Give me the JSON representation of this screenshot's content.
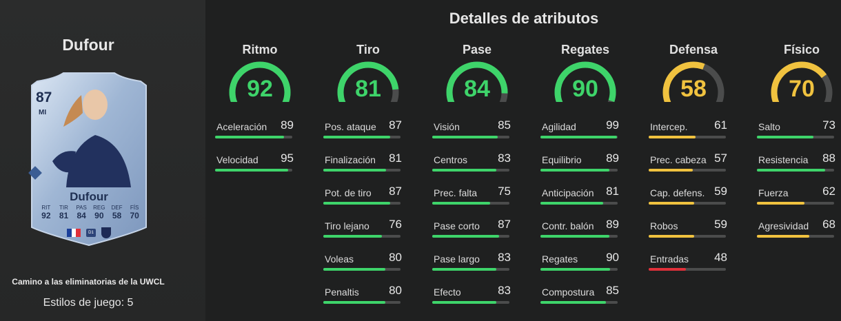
{
  "player": {
    "name": "Dufour",
    "card": {
      "rating": "87",
      "position": "MI",
      "name": "Dufour",
      "stat_labels": [
        "RIT",
        "TIR",
        "PAS",
        "REG",
        "DEF",
        "FÍS"
      ],
      "stat_values": [
        "92",
        "81",
        "84",
        "90",
        "58",
        "70"
      ],
      "league_badge": "D1"
    },
    "promo": "Camino a las eliminatorias de la UWCL",
    "playstyles": "Estilos de juego: 5"
  },
  "title": "Detalles de atributos",
  "colors": {
    "green": "#3ed46a",
    "yellow": "#f0c23f",
    "red": "#e0303a",
    "track": "#4b4c4c",
    "background": "#1f2020"
  },
  "categories": [
    {
      "name": "Ritmo",
      "value": 92,
      "color": "green",
      "stats": [
        {
          "label": "Aceleración",
          "value": 89
        },
        {
          "label": "Velocidad",
          "value": 95
        }
      ]
    },
    {
      "name": "Tiro",
      "value": 81,
      "color": "green",
      "stats": [
        {
          "label": "Pos. ataque",
          "value": 87
        },
        {
          "label": "Finalización",
          "value": 81
        },
        {
          "label": "Pot. de tiro",
          "value": 87
        },
        {
          "label": "Tiro lejano",
          "value": 76
        },
        {
          "label": "Voleas",
          "value": 80
        },
        {
          "label": "Penaltis",
          "value": 80
        }
      ]
    },
    {
      "name": "Pase",
      "value": 84,
      "color": "green",
      "stats": [
        {
          "label": "Visión",
          "value": 85
        },
        {
          "label": "Centros",
          "value": 83
        },
        {
          "label": "Prec. falta",
          "value": 75
        },
        {
          "label": "Pase corto",
          "value": 87
        },
        {
          "label": "Pase largo",
          "value": 83
        },
        {
          "label": "Efecto",
          "value": 83
        }
      ]
    },
    {
      "name": "Regates",
      "value": 90,
      "color": "green",
      "stats": [
        {
          "label": "Agilidad",
          "value": 99
        },
        {
          "label": "Equilibrio",
          "value": 89
        },
        {
          "label": "Anticipación",
          "value": 81
        },
        {
          "label": "Contr. balón",
          "value": 89
        },
        {
          "label": "Regates",
          "value": 90
        },
        {
          "label": "Compostura",
          "value": 85
        }
      ]
    },
    {
      "name": "Defensa",
      "value": 58,
      "color": "yellow",
      "stats": [
        {
          "label": "Intercep.",
          "value": 61
        },
        {
          "label": "Prec. cabeza",
          "value": 57
        },
        {
          "label": "Cap. defens.",
          "value": 59
        },
        {
          "label": "Robos",
          "value": 59
        },
        {
          "label": "Entradas",
          "value": 48
        }
      ]
    },
    {
      "name": "Físico",
      "value": 70,
      "color": "yellow",
      "stats": [
        {
          "label": "Salto",
          "value": 73
        },
        {
          "label": "Resistencia",
          "value": 88
        },
        {
          "label": "Fuerza",
          "value": 62
        },
        {
          "label": "Agresividad",
          "value": 68
        }
      ]
    }
  ]
}
